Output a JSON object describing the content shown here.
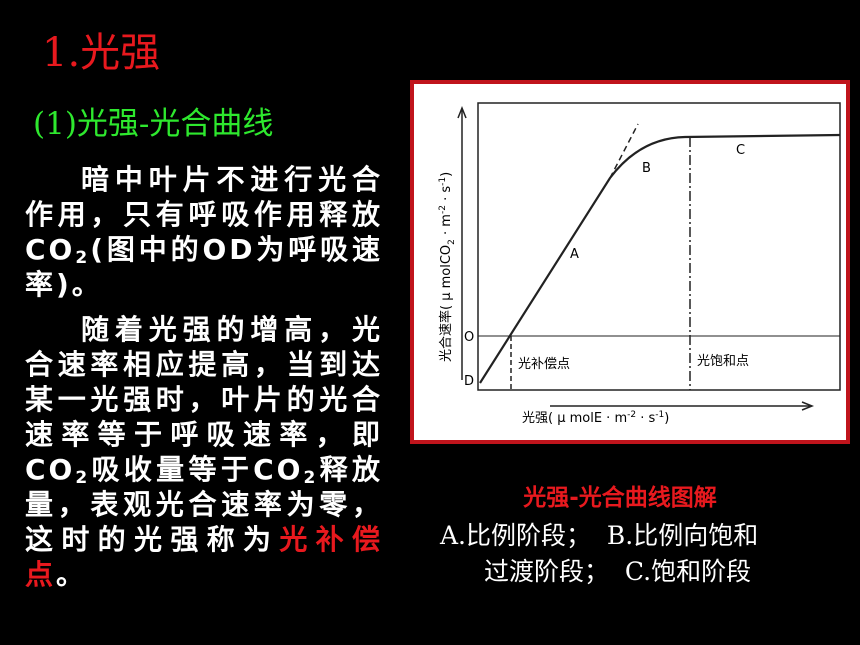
{
  "slide": {
    "title": "1.光强",
    "subtitle": "(1)光强-光合曲线",
    "paragraph1": [
      "暗中叶片不进行光合作用，只有呼吸作用释放CO",
      "2",
      "(图中的OD为呼吸速率)。"
    ],
    "paragraph2": [
      "随着光强的增高，光合速率相应提高，当到达某一光强时，叶片的光合速率等于呼吸速率，即CO",
      "2",
      "吸收量等于CO",
      "2",
      "释放量，表观光合速率为零，这时的光强称为",
      "光补偿点",
      "。"
    ],
    "figure": {
      "y_axis_label": [
        "光合速率( μ molCO",
        "2",
        " · m",
        "-2",
        " · s",
        "-1",
        ")"
      ],
      "x_axis_label": [
        "光强( μ molE · m",
        "-2",
        " · s",
        "-1",
        ")"
      ],
      "segment_a": "A",
      "segment_b": "B",
      "segment_c": "C",
      "point_o": "O",
      "point_d": "D",
      "compensation_point": "光补偿点",
      "saturation_point": "光饱和点"
    },
    "caption": {
      "title": "光强-光合曲线图解",
      "line1": "A.比例阶段；  B.比例向饱和",
      "line2": "过渡阶段；  C.饱和阶段"
    }
  }
}
